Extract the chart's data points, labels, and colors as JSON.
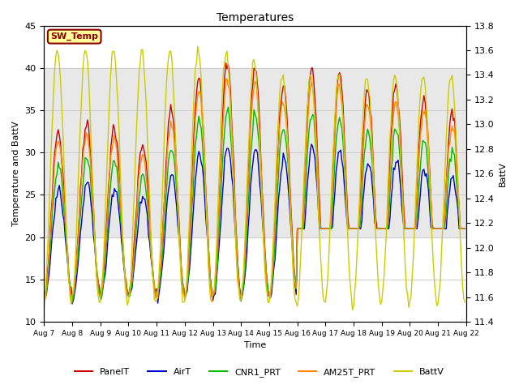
{
  "title": "Temperatures",
  "xlabel": "Time",
  "ylabel_left": "Temperature and BattV",
  "ylabel_right": "BattV",
  "ylim_left": [
    10,
    45
  ],
  "ylim_right": [
    11.4,
    13.8
  ],
  "x_tick_labels": [
    "Aug 7",
    "Aug 8",
    "Aug 9",
    "Aug 10",
    "Aug 11",
    "Aug 12",
    "Aug 13",
    "Aug 14",
    "Aug 15",
    "Aug 16",
    "Aug 17",
    "Aug 18",
    "Aug 19",
    "Aug 20",
    "Aug 21",
    "Aug 22"
  ],
  "annotation_text": "SW_Temp",
  "annotation_color": "#8B0000",
  "annotation_bg": "#FFFF99",
  "bg_band_ylim": [
    20,
    40
  ],
  "legend_entries": [
    "PanelT",
    "AirT",
    "CNR1_PRT",
    "AM25T_PRT",
    "BattV"
  ],
  "line_colors": [
    "#CC0000",
    "#0000CC",
    "#00BB00",
    "#FF8800",
    "#CCCC00"
  ],
  "grid_color": "#cccccc",
  "bg_color": "#e8e8e8",
  "plot_bg": "#ffffff"
}
